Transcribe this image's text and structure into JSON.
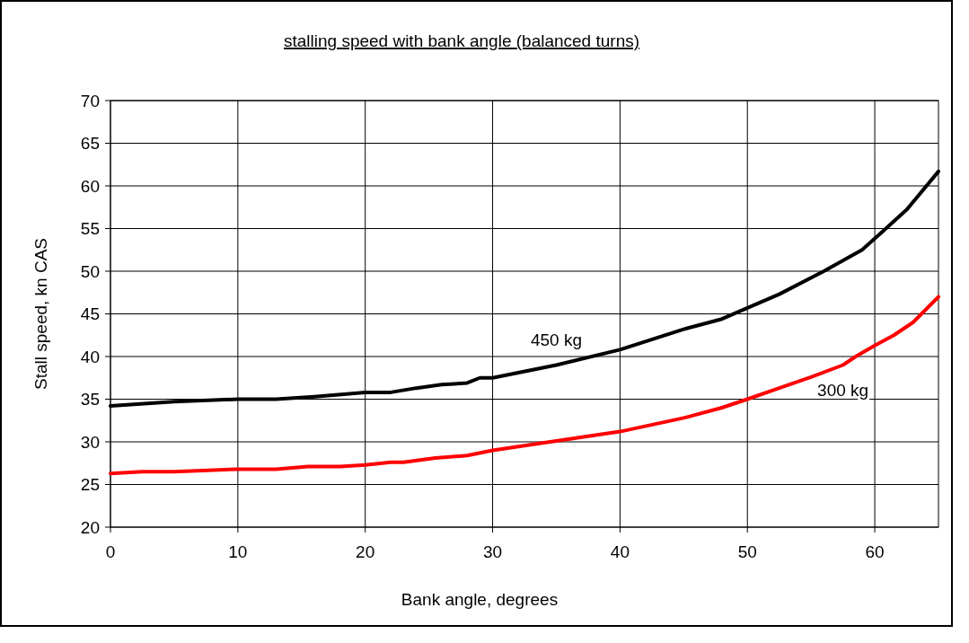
{
  "chart_data": {
    "type": "line",
    "title": "stalling speed with bank angle (balanced turns)",
    "xlabel": "Bank angle, degrees",
    "ylabel": "Stall speed, kn CAS",
    "xlim": [
      0,
      65
    ],
    "xticks": [
      0,
      10,
      20,
      30,
      40,
      50,
      60
    ],
    "ylim": [
      20,
      70
    ],
    "yticks": [
      20,
      25,
      30,
      35,
      40,
      45,
      50,
      55,
      60,
      65,
      70
    ],
    "grid": true,
    "legend": false,
    "marker": "none",
    "line_style": "solid",
    "series": [
      {
        "name": "450 kg",
        "color": "#000000",
        "x": [
          0,
          5,
          10,
          13,
          16,
          20,
          22,
          24,
          26,
          28,
          29,
          30,
          35,
          40,
          45,
          48,
          52.5,
          56,
          59,
          60.5,
          62.5,
          65
        ],
        "values": [
          34.2,
          34.7,
          35,
          35,
          35.3,
          35.8,
          35.8,
          36.3,
          36.7,
          36.9,
          37.5,
          37.5,
          39,
          40.8,
          43.2,
          44.4,
          47.3,
          50,
          52.5,
          54.5,
          57.2,
          61.7
        ]
      },
      {
        "name": "300 kg",
        "color": "#ff0000",
        "x": [
          0,
          2.5,
          5,
          10,
          13,
          15.5,
          18,
          20,
          22,
          23,
          25.5,
          28,
          30,
          35,
          40,
          45,
          48,
          50,
          52.5,
          55,
          57.5,
          58.5,
          60,
          61.5,
          63,
          65
        ],
        "values": [
          26.3,
          26.5,
          26.5,
          26.8,
          26.8,
          27.1,
          27.1,
          27.3,
          27.6,
          27.6,
          28.1,
          28.4,
          29,
          30.1,
          31.2,
          32.8,
          34,
          35,
          36.3,
          37.6,
          39,
          40,
          41.3,
          42.5,
          44,
          47
        ]
      }
    ]
  }
}
